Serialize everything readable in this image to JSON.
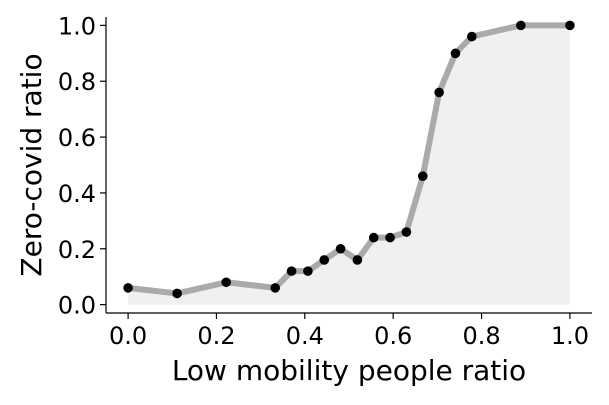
{
  "chart_data": {
    "type": "line",
    "xlabel": "Low mobility people ratio",
    "ylabel": "Zero-covid ratio",
    "xlim": [
      -0.05,
      1.05
    ],
    "ylim": [
      -0.03,
      1.03
    ],
    "xticks": [
      0.0,
      0.2,
      0.4,
      0.6,
      0.8,
      1.0
    ],
    "yticks": [
      0.0,
      0.2,
      0.4,
      0.6,
      0.8,
      1.0
    ],
    "xtick_labels": [
      "0.0",
      "0.2",
      "0.4",
      "0.6",
      "0.8",
      "1.0"
    ],
    "ytick_labels": [
      "0.0",
      "0.2",
      "0.4",
      "0.6",
      "0.8",
      "1.0"
    ],
    "grid": false,
    "area_fill": true,
    "series": [
      {
        "x": [
          0.0,
          0.111,
          0.222,
          0.333,
          0.37,
          0.407,
          0.444,
          0.481,
          0.519,
          0.556,
          0.593,
          0.63,
          0.667,
          0.704,
          0.741,
          0.778,
          0.889,
          1.0
        ],
        "y": [
          0.06,
          0.04,
          0.08,
          0.06,
          0.12,
          0.12,
          0.16,
          0.2,
          0.16,
          0.24,
          0.24,
          0.26,
          0.46,
          0.76,
          0.9,
          0.96,
          1.0,
          1.0
        ]
      }
    ],
    "colors": {
      "line": "#aaaaaa",
      "marker": "#000000",
      "fill": "#f0f0f0",
      "axis": "#000000"
    }
  }
}
